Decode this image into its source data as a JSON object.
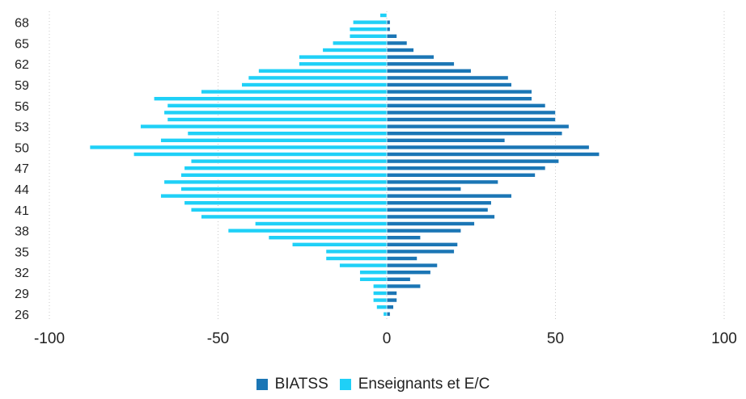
{
  "chart_data": {
    "type": "bar",
    "orientation": "horizontal-diverging",
    "ages": [
      26,
      27,
      28,
      29,
      30,
      31,
      32,
      33,
      34,
      35,
      36,
      37,
      38,
      39,
      40,
      41,
      42,
      43,
      44,
      45,
      46,
      47,
      48,
      49,
      50,
      51,
      52,
      53,
      54,
      55,
      56,
      57,
      58,
      59,
      60,
      61,
      62,
      63,
      64,
      65,
      66,
      67,
      68,
      69
    ],
    "ytick_values": [
      26,
      29,
      32,
      35,
      38,
      41,
      44,
      47,
      50,
      53,
      56,
      59,
      62,
      65,
      68
    ],
    "xlim": [
      -100,
      100
    ],
    "xticks": [
      -100,
      -50,
      0,
      50,
      100
    ],
    "grid_x": true,
    "legend_position": "bottom-center",
    "series": [
      {
        "name": "BIATSS",
        "color": "#1b76b5",
        "values": [
          1,
          2,
          3,
          3,
          10,
          7,
          13,
          15,
          9,
          20,
          21,
          10,
          22,
          26,
          32,
          30,
          31,
          37,
          22,
          33,
          44,
          47,
          51,
          63,
          60,
          35,
          52,
          54,
          50,
          50,
          47,
          43,
          43,
          37,
          36,
          25,
          20,
          14,
          8,
          6,
          3,
          1,
          1,
          0
        ]
      },
      {
        "name": "Enseignants et E/C",
        "color": "#1fd0f7",
        "values": [
          -1,
          -3,
          -4,
          -4,
          -4,
          -8,
          -8,
          -14,
          -18,
          -18,
          -28,
          -35,
          -47,
          -39,
          -55,
          -58,
          -60,
          -67,
          -61,
          -66,
          -61,
          -60,
          -58,
          -75,
          -88,
          -67,
          -59,
          -73,
          -65,
          -66,
          -65,
          -69,
          -55,
          -43,
          -41,
          -38,
          -26,
          -26,
          -19,
          -16,
          -11,
          -11,
          -10,
          -2
        ]
      }
    ]
  }
}
